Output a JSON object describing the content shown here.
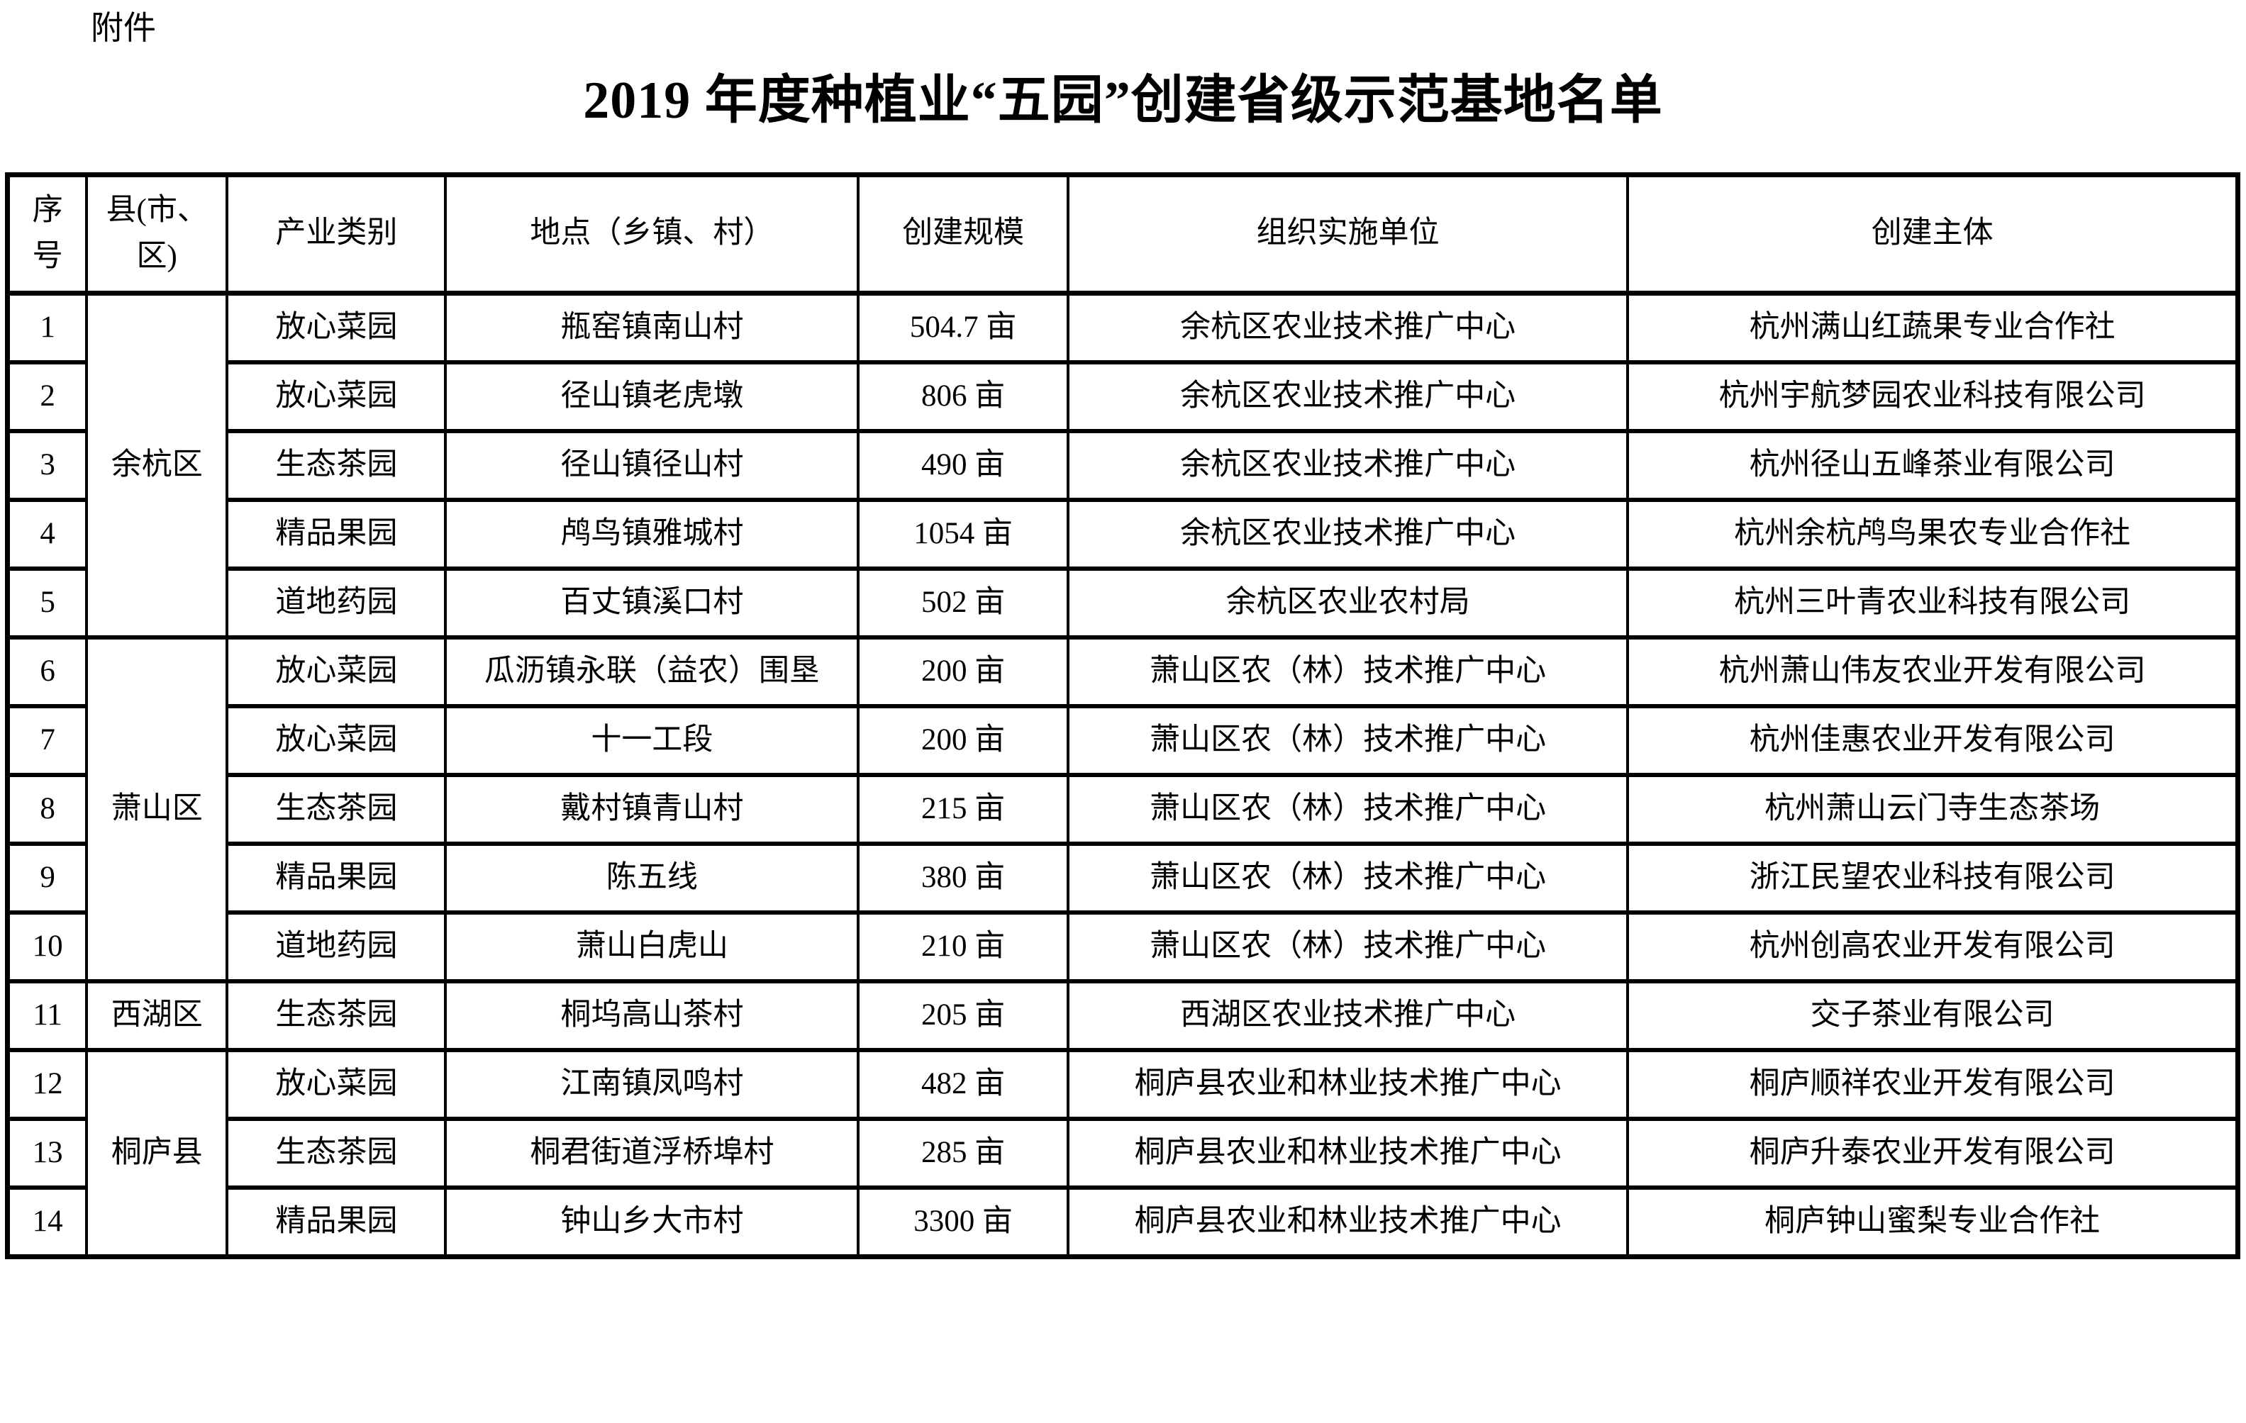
{
  "page": {
    "attachment_label": "附件",
    "title": "2019 年度种植业“五园”创建省级示范基地名单"
  },
  "table": {
    "headers": [
      {
        "id": "no",
        "label": "序\n号"
      },
      {
        "id": "county",
        "label": "县(市、\n区)"
      },
      {
        "id": "category",
        "label": "产业类别"
      },
      {
        "id": "location",
        "label": "地点（乡镇、村）"
      },
      {
        "id": "scale",
        "label": "创建规模"
      },
      {
        "id": "org",
        "label": "组织实施单位"
      },
      {
        "id": "entity",
        "label": "创建主体"
      }
    ],
    "groups": [
      {
        "county": "余杭区",
        "rows": [
          {
            "no": "1",
            "category": "放心菜园",
            "location": "瓶窑镇南山村",
            "scale": "504.7 亩",
            "org": "余杭区农业技术推广中心",
            "entity": "杭州满山红蔬果专业合作社"
          },
          {
            "no": "2",
            "category": "放心菜园",
            "location": "径山镇老虎墩",
            "scale": "806 亩",
            "org": "余杭区农业技术推广中心",
            "entity": "杭州宇航梦园农业科技有限公司"
          },
          {
            "no": "3",
            "category": "生态茶园",
            "location": "径山镇径山村",
            "scale": "490 亩",
            "org": "余杭区农业技术推广中心",
            "entity": "杭州径山五峰茶业有限公司"
          },
          {
            "no": "4",
            "category": "精品果园",
            "location": "鸬鸟镇雅城村",
            "scale": "1054 亩",
            "org": "余杭区农业技术推广中心",
            "entity": "杭州余杭鸬鸟果农专业合作社"
          },
          {
            "no": "5",
            "category": "道地药园",
            "location": "百丈镇溪口村",
            "scale": "502 亩",
            "org": "余杭区农业农村局",
            "entity": "杭州三叶青农业科技有限公司"
          }
        ]
      },
      {
        "county": "萧山区",
        "rows": [
          {
            "no": "6",
            "category": "放心菜园",
            "location": "瓜沥镇永联（益农）围垦",
            "scale": "200 亩",
            "org": "萧山区农（林）技术推广中心",
            "entity": "杭州萧山伟友农业开发有限公司"
          },
          {
            "no": "7",
            "category": "放心菜园",
            "location": "十一工段",
            "scale": "200 亩",
            "org": "萧山区农（林）技术推广中心",
            "entity": "杭州佳惠农业开发有限公司"
          },
          {
            "no": "8",
            "category": "生态茶园",
            "location": "戴村镇青山村",
            "scale": "215 亩",
            "org": "萧山区农（林）技术推广中心",
            "entity": "杭州萧山云门寺生态茶场"
          },
          {
            "no": "9",
            "category": "精品果园",
            "location": "陈五线",
            "scale": "380 亩",
            "org": "萧山区农（林）技术推广中心",
            "entity": "浙江民望农业科技有限公司"
          },
          {
            "no": "10",
            "category": "道地药园",
            "location": "萧山白虎山",
            "scale": "210 亩",
            "org": "萧山区农（林）技术推广中心",
            "entity": "杭州创高农业开发有限公司"
          }
        ]
      },
      {
        "county": "西湖区",
        "rows": [
          {
            "no": "11",
            "category": "生态茶园",
            "location": "桐坞高山茶村",
            "scale": "205 亩",
            "org": "西湖区农业技术推广中心",
            "entity": "交子茶业有限公司"
          }
        ]
      },
      {
        "county": "桐庐县",
        "rows": [
          {
            "no": "12",
            "category": "放心菜园",
            "location": "江南镇凤鸣村",
            "scale": "482 亩",
            "org": "桐庐县农业和林业技术推广中心",
            "entity": "桐庐顺祥农业开发有限公司"
          },
          {
            "no": "13",
            "category": "生态茶园",
            "location": "桐君街道浮桥埠村",
            "scale": "285 亩",
            "org": "桐庐县农业和林业技术推广中心",
            "entity": "桐庐升泰农业开发有限公司"
          },
          {
            "no": "14",
            "category": "精品果园",
            "location": "钟山乡大市村",
            "scale": "3300 亩",
            "org": "桐庐县农业和林业技术推广中心",
            "entity": "桐庐钟山蜜梨专业合作社"
          }
        ]
      }
    ]
  }
}
